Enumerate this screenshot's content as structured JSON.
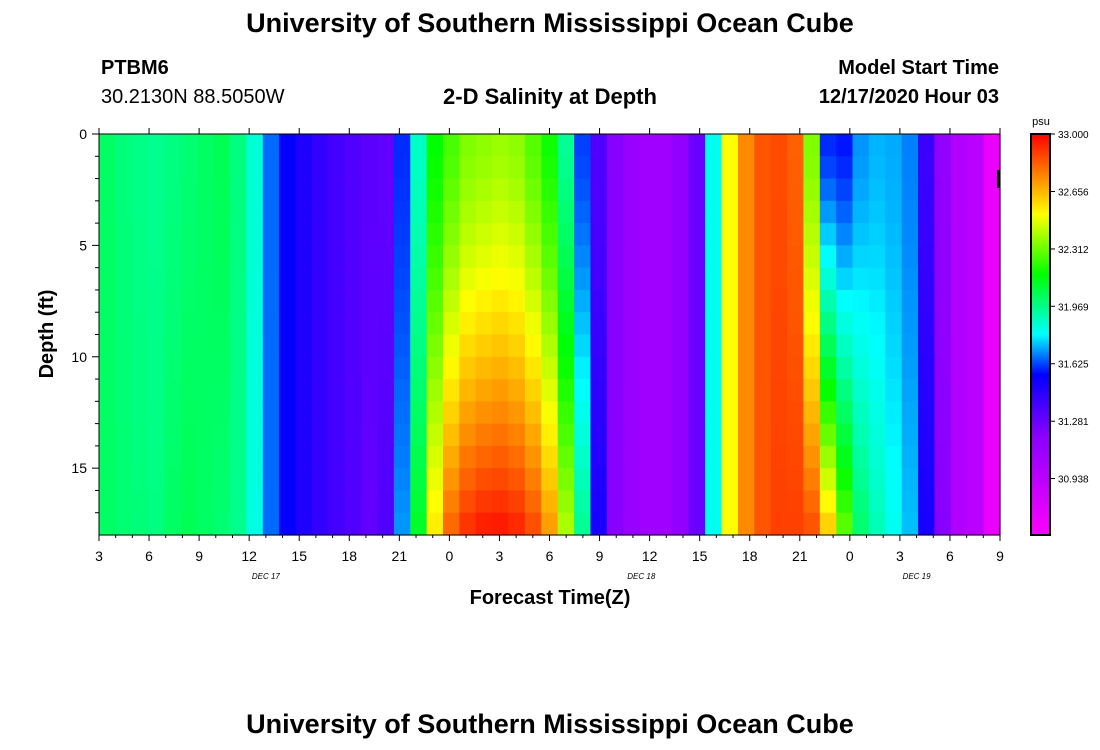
{
  "title": "University of Southern Mississippi Ocean Cube",
  "footer_title": "University of Southern Mississippi Ocean Cube",
  "station": {
    "id": "PTBM6",
    "coords": "30.2130N 88.5050W"
  },
  "chart_heading": "2-D Salinity at Depth",
  "model": {
    "label": "Model Start Time",
    "time": "12/17/2020 Hour 03"
  },
  "chart_data": {
    "type": "heatmap",
    "title": "2-D Salinity at Depth",
    "xlabel": "Forecast Time(Z)",
    "ylabel": "Depth (ft)",
    "x_range_hours": [
      0,
      54
    ],
    "y_range_ft": [
      0,
      18
    ],
    "x_ticks": [
      {
        "h": 0,
        "label": "3"
      },
      {
        "h": 3,
        "label": "6"
      },
      {
        "h": 6,
        "label": "9"
      },
      {
        "h": 9,
        "label": "12"
      },
      {
        "h": 12,
        "label": "15"
      },
      {
        "h": 15,
        "label": "18"
      },
      {
        "h": 18,
        "label": "21"
      },
      {
        "h": 21,
        "label": "0"
      },
      {
        "h": 24,
        "label": "3"
      },
      {
        "h": 27,
        "label": "6"
      },
      {
        "h": 30,
        "label": "9"
      },
      {
        "h": 33,
        "label": "12"
      },
      {
        "h": 36,
        "label": "15"
      },
      {
        "h": 39,
        "label": "18"
      },
      {
        "h": 42,
        "label": "21"
      },
      {
        "h": 45,
        "label": "0"
      },
      {
        "h": 48,
        "label": "3"
      },
      {
        "h": 51,
        "label": "6"
      },
      {
        "h": 54,
        "label": "9"
      }
    ],
    "date_labels": [
      {
        "h": 10,
        "label": "DEC 17"
      },
      {
        "h": 32.5,
        "label": "DEC 18"
      },
      {
        "h": 49,
        "label": "DEC 19"
      }
    ],
    "y_ticks": [
      {
        "v": 0,
        "label": "0"
      },
      {
        "v": 5,
        "label": "5"
      },
      {
        "v": 10,
        "label": "10"
      },
      {
        "v": 15,
        "label": "15"
      }
    ],
    "colorbar": {
      "unit": "psu",
      "min": 30.6,
      "max": 33.0,
      "tick_labels": [
        "33.000",
        "32.656",
        "32.312",
        "31.969",
        "31.625",
        "31.281",
        "30.938"
      ],
      "tick_values": [
        33.0,
        32.656,
        32.312,
        31.969,
        31.625,
        31.281,
        30.938
      ]
    },
    "grid": {
      "nx": 55,
      "ny": 18
    },
    "salinity_surface_psu": [
      32.02,
      31.99,
      31.97,
      31.96,
      31.98,
      32.0,
      32.02,
      32.04,
      31.98,
      31.86,
      31.66,
      31.55,
      31.48,
      31.43,
      31.38,
      31.35,
      31.32,
      31.3,
      31.6,
      31.88,
      32.16,
      32.26,
      32.34,
      32.36,
      32.38,
      32.36,
      32.28,
      32.18,
      31.95,
      31.62,
      31.35,
      31.2,
      31.12,
      31.08,
      31.08,
      31.15,
      31.28,
      31.82,
      32.52,
      32.74,
      32.84,
      32.86,
      32.82,
      32.34,
      31.6,
      31.58,
      31.7,
      31.73,
      31.72,
      31.68,
      31.4,
      31.15,
      31.0,
      30.95,
      30.7
    ],
    "salinity_bottom_psu": [
      32.02,
      32.0,
      31.99,
      31.98,
      32.02,
      32.04,
      32.02,
      32.0,
      31.96,
      31.84,
      31.66,
      31.55,
      31.48,
      31.43,
      31.38,
      31.35,
      31.3,
      31.35,
      31.7,
      32.1,
      32.55,
      32.8,
      32.9,
      32.94,
      32.95,
      32.92,
      32.85,
      32.7,
      32.4,
      31.95,
      31.5,
      31.2,
      31.12,
      31.08,
      31.08,
      31.15,
      31.28,
      31.82,
      32.52,
      32.74,
      32.84,
      32.88,
      32.88,
      32.84,
      32.6,
      32.28,
      32.0,
      31.9,
      31.82,
      31.74,
      31.5,
      31.2,
      31.0,
      30.95,
      30.7
    ]
  }
}
